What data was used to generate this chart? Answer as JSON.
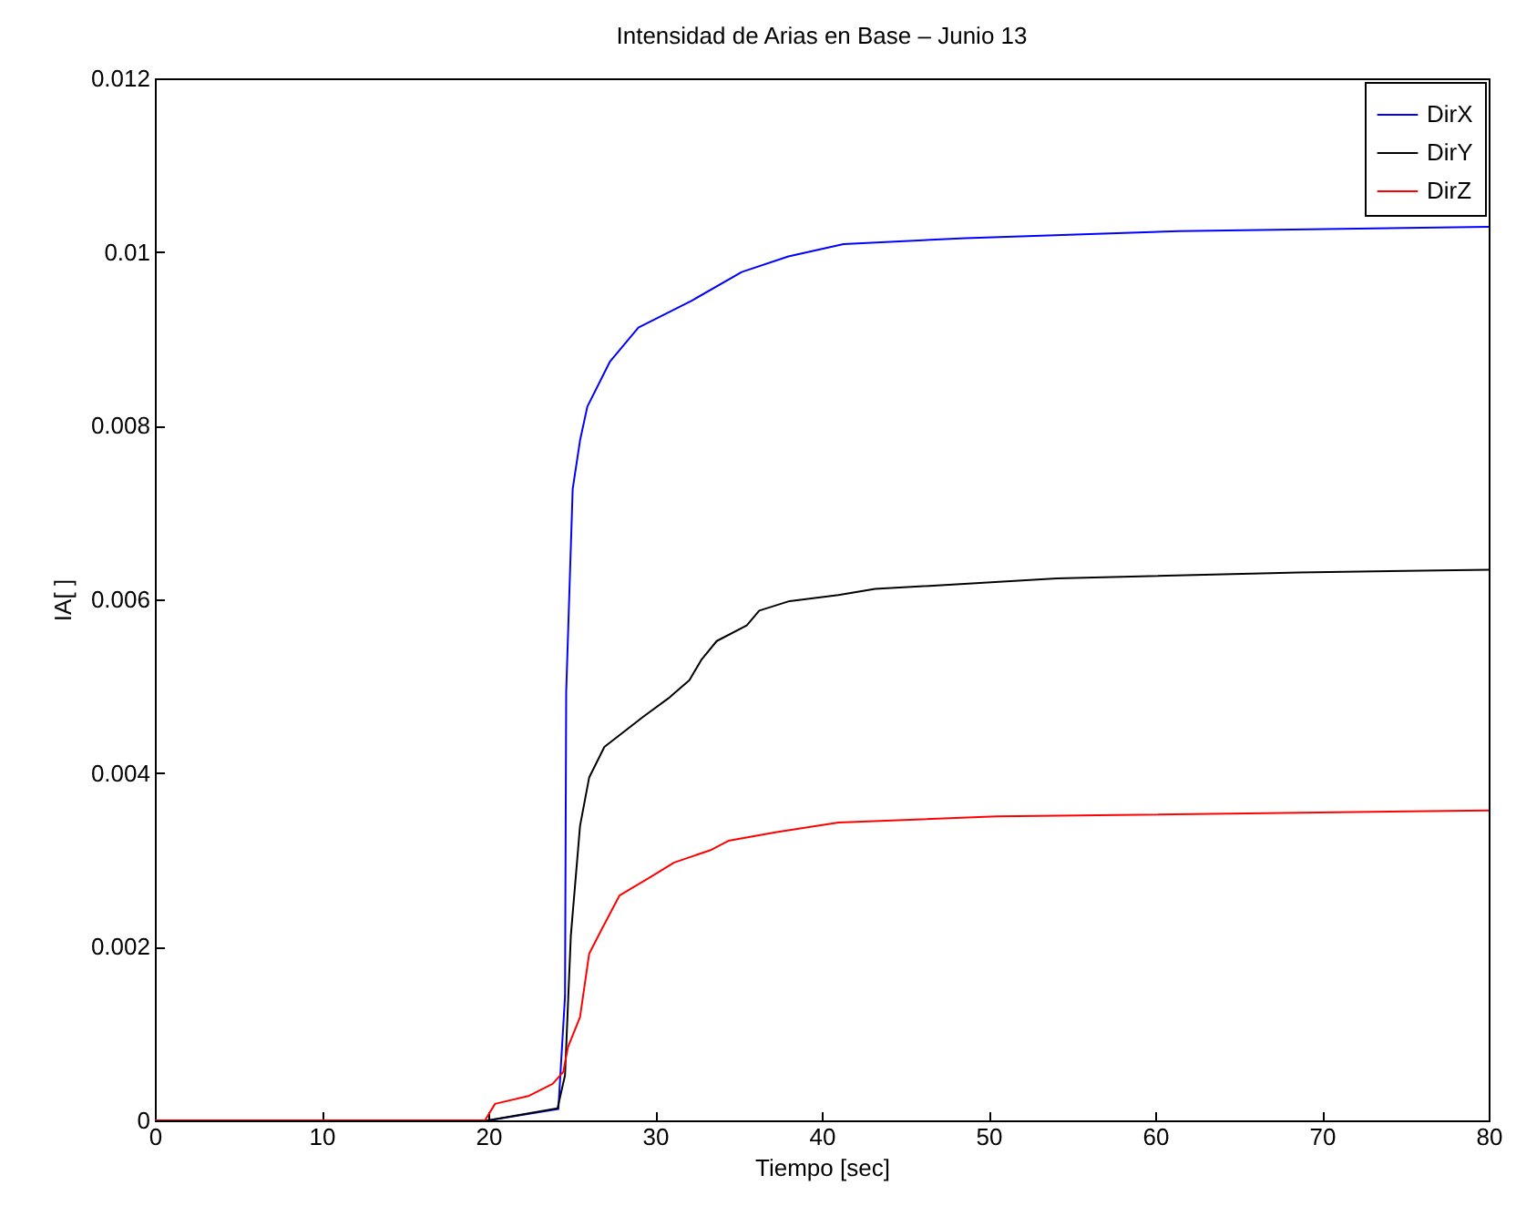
{
  "chart_data": {
    "type": "line",
    "title": "Intensidad de Arias en Base – Junio 13",
    "xlabel": "Tiempo [sec]",
    "ylabel": "IA[ ]",
    "xlim": [
      0,
      80
    ],
    "xticks": [
      0,
      10,
      20,
      30,
      40,
      50,
      60,
      70,
      80
    ],
    "ylim": [
      0,
      0.012
    ],
    "yticks": [
      0,
      0.002,
      0.004,
      0.006,
      0.008,
      0.01,
      0.012
    ],
    "grid": false,
    "legend": "top right",
    "line_style": "solid",
    "series": [
      {
        "name": "DirX",
        "color": "#0000ff",
        "x": [
          0,
          20,
          24.2,
          24.6,
          24.67,
          25.06,
          25.5,
          25.94,
          27.3,
          29,
          32.2,
          35.2,
          38,
          41.3,
          48.6,
          61.4,
          80
        ],
        "values": [
          0,
          0,
          0.00013,
          0.00143,
          0.00493,
          0.00727,
          0.00783,
          0.00822,
          0.00874,
          0.00913,
          0.00944,
          0.00977,
          0.00995,
          0.01009,
          0.01016,
          0.01024,
          0.01029
        ]
      },
      {
        "name": "DirY",
        "color": "#000000",
        "x": [
          0,
          20,
          24.15,
          24.6,
          24.95,
          25.5,
          26.05,
          26.96,
          29.3,
          30.8,
          32.06,
          32.8,
          33.7,
          35.5,
          36.25,
          38.07,
          41,
          43.2,
          54.1,
          68.6,
          80
        ],
        "values": [
          0,
          0,
          0.00014,
          0.00052,
          0.00213,
          0.00339,
          0.00395,
          0.0043,
          0.00465,
          0.00486,
          0.00507,
          0.00531,
          0.00552,
          0.0057,
          0.00587,
          0.00598,
          0.00605,
          0.00612,
          0.00624,
          0.00631,
          0.00634
        ]
      },
      {
        "name": "DirZ",
        "color": "#ff0000",
        "x": [
          0,
          19.8,
          20.4,
          22.4,
          23.86,
          24.5,
          24.77,
          25.5,
          26.05,
          26.8,
          27.87,
          29.7,
          31.15,
          33.3,
          34.4,
          37.3,
          41,
          50.5,
          80
        ],
        "values": [
          0,
          0,
          0.00019,
          0.00028,
          0.00042,
          0.00056,
          0.00084,
          0.00119,
          0.00192,
          0.0022,
          0.00259,
          0.0028,
          0.00297,
          0.00311,
          0.00322,
          0.00332,
          0.00343,
          0.0035,
          0.00357
        ]
      }
    ]
  }
}
